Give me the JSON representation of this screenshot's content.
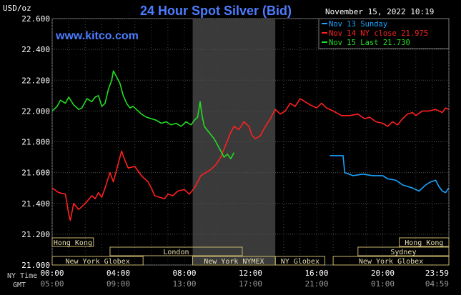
{
  "header": {
    "unit": "USD/oz",
    "title": "24 Hour Spot Silver (Bid)",
    "timestamp": "November 15, 2022 10:19",
    "watermark": "www.kitco.com"
  },
  "legend": [
    {
      "label": "Nov 13 Sunday",
      "color": "#1aa3ff"
    },
    {
      "label": "Nov 14 NY close 21.975",
      "color": "#ff2020"
    },
    {
      "label": "Nov 15 Last 21.730",
      "color": "#22dd22"
    }
  ],
  "sessions": {
    "row1": [
      {
        "label": "Hong Kong",
        "from": 0,
        "to": 2.5
      },
      {
        "label": "Hong Kong",
        "from": 21,
        "to": 24
      }
    ],
    "row2": [
      {
        "label": "London",
        "from": 3.5,
        "to": 11.5
      },
      {
        "label": "Sydney",
        "from": 18.5,
        "to": 24
      }
    ],
    "row3": [
      {
        "label": "New York Globex",
        "from": 0,
        "to": 5.5
      },
      {
        "label": "New York NYMEX",
        "from": 8.5,
        "to": 13.5
      },
      {
        "label": "NY Globex",
        "from": 13.5,
        "to": 16.5
      },
      {
        "label": "New York Globex",
        "from": 17,
        "to": 24
      }
    ]
  },
  "axis_labels": {
    "ny": "NY Time",
    "gmt": "GMT"
  },
  "chart_data": {
    "type": "line",
    "ylabel": "USD/oz",
    "ylim": [
      21.0,
      22.6
    ],
    "xlim": [
      0,
      24
    ],
    "yticks": [
      "21.000",
      "21.200",
      "21.400",
      "21.600",
      "21.800",
      "22.000",
      "22.200",
      "22.400",
      "22.600"
    ],
    "xticks_ny": [
      "00:00",
      "04:00",
      "08:00",
      "12:00",
      "16:00",
      "20:00",
      "23:59"
    ],
    "xticks_gmt": [
      "05:00",
      "09:00",
      "13:00",
      "17:00",
      "21:00",
      "01:00",
      "04:59"
    ],
    "grid": true,
    "shaded_range": [
      8.5,
      13.5
    ],
    "series": [
      {
        "name": "Nov 13 Sunday",
        "color": "#1aa3ff",
        "points": [
          [
            16.8,
            21.71
          ],
          [
            17.6,
            21.71
          ],
          [
            17.7,
            21.6
          ],
          [
            18.2,
            21.58
          ],
          [
            18.8,
            21.59
          ],
          [
            19.4,
            21.58
          ],
          [
            20.0,
            21.58
          ],
          [
            20.3,
            21.56
          ],
          [
            20.8,
            21.55
          ],
          [
            21.2,
            21.52
          ],
          [
            21.8,
            21.5
          ],
          [
            22.2,
            21.48
          ],
          [
            22.6,
            21.52
          ],
          [
            22.9,
            21.54
          ],
          [
            23.2,
            21.55
          ],
          [
            23.4,
            21.51
          ],
          [
            23.6,
            21.48
          ],
          [
            23.8,
            21.47
          ],
          [
            23.99,
            21.5
          ]
        ]
      },
      {
        "name": "Nov 14 NY close 21.975",
        "color": "#ff2020",
        "points": [
          [
            0,
            21.5
          ],
          [
            0.4,
            21.47
          ],
          [
            0.8,
            21.46
          ],
          [
            1.0,
            21.33
          ],
          [
            1.1,
            21.29
          ],
          [
            1.3,
            21.4
          ],
          [
            1.6,
            21.36
          ],
          [
            2.0,
            21.4
          ],
          [
            2.4,
            21.45
          ],
          [
            2.6,
            21.43
          ],
          [
            2.8,
            21.47
          ],
          [
            3.0,
            21.44
          ],
          [
            3.2,
            21.5
          ],
          [
            3.5,
            21.6
          ],
          [
            3.7,
            21.54
          ],
          [
            4.0,
            21.66
          ],
          [
            4.2,
            21.74
          ],
          [
            4.4,
            21.68
          ],
          [
            4.6,
            21.63
          ],
          [
            5.0,
            21.64
          ],
          [
            5.4,
            21.58
          ],
          [
            5.8,
            21.54
          ],
          [
            6.0,
            21.5
          ],
          [
            6.2,
            21.45
          ],
          [
            6.5,
            21.44
          ],
          [
            6.8,
            21.43
          ],
          [
            7.0,
            21.46
          ],
          [
            7.3,
            21.45
          ],
          [
            7.6,
            21.48
          ],
          [
            8.0,
            21.49
          ],
          [
            8.3,
            21.46
          ],
          [
            8.6,
            21.5
          ],
          [
            8.8,
            21.54
          ],
          [
            9.0,
            21.58
          ],
          [
            9.3,
            21.6
          ],
          [
            9.6,
            21.62
          ],
          [
            9.9,
            21.65
          ],
          [
            10.2,
            21.7
          ],
          [
            10.5,
            21.78
          ],
          [
            10.8,
            21.86
          ],
          [
            11.0,
            21.9
          ],
          [
            11.3,
            21.88
          ],
          [
            11.6,
            21.93
          ],
          [
            11.9,
            21.9
          ],
          [
            12.1,
            21.84
          ],
          [
            12.3,
            21.82
          ],
          [
            12.6,
            21.84
          ],
          [
            12.9,
            21.9
          ],
          [
            13.2,
            21.95
          ],
          [
            13.5,
            22.01
          ],
          [
            13.8,
            21.98
          ],
          [
            14.1,
            22.0
          ],
          [
            14.4,
            22.05
          ],
          [
            14.7,
            22.03
          ],
          [
            15.0,
            22.08
          ],
          [
            15.3,
            22.06
          ],
          [
            15.6,
            22.04
          ],
          [
            16.0,
            22.02
          ],
          [
            16.3,
            22.05
          ],
          [
            16.6,
            22.02
          ],
          [
            17.0,
            22.0
          ],
          [
            17.5,
            21.97
          ],
          [
            18.0,
            21.97
          ],
          [
            18.5,
            21.98
          ],
          [
            18.9,
            21.95
          ],
          [
            19.2,
            21.96
          ],
          [
            19.6,
            21.93
          ],
          [
            20.0,
            21.92
          ],
          [
            20.3,
            21.9
          ],
          [
            20.6,
            21.93
          ],
          [
            20.9,
            21.91
          ],
          [
            21.2,
            21.95
          ],
          [
            21.5,
            21.98
          ],
          [
            21.8,
            21.99
          ],
          [
            22.0,
            21.97
          ],
          [
            22.4,
            22.0
          ],
          [
            22.8,
            22.0
          ],
          [
            23.2,
            22.01
          ],
          [
            23.6,
            21.99
          ],
          [
            23.8,
            22.02
          ],
          [
            23.99,
            22.01
          ]
        ]
      },
      {
        "name": "Nov 15 Last 21.730",
        "color": "#22dd22",
        "points": [
          [
            0,
            22.0
          ],
          [
            0.3,
            22.03
          ],
          [
            0.5,
            22.07
          ],
          [
            0.8,
            22.05
          ],
          [
            1.0,
            22.09
          ],
          [
            1.3,
            22.04
          ],
          [
            1.6,
            22.01
          ],
          [
            1.8,
            22.02
          ],
          [
            2.1,
            22.08
          ],
          [
            2.4,
            22.06
          ],
          [
            2.6,
            22.09
          ],
          [
            2.8,
            22.1
          ],
          [
            3.0,
            22.03
          ],
          [
            3.2,
            22.05
          ],
          [
            3.4,
            22.14
          ],
          [
            3.6,
            22.2
          ],
          [
            3.7,
            22.26
          ],
          [
            3.9,
            22.22
          ],
          [
            4.1,
            22.18
          ],
          [
            4.3,
            22.1
          ],
          [
            4.5,
            22.05
          ],
          [
            4.7,
            22.02
          ],
          [
            4.9,
            22.03
          ],
          [
            5.1,
            22.01
          ],
          [
            5.4,
            21.98
          ],
          [
            5.7,
            21.96
          ],
          [
            6.0,
            21.95
          ],
          [
            6.3,
            21.94
          ],
          [
            6.6,
            21.92
          ],
          [
            6.9,
            21.93
          ],
          [
            7.2,
            21.91
          ],
          [
            7.5,
            21.92
          ],
          [
            7.8,
            21.9
          ],
          [
            8.1,
            21.93
          ],
          [
            8.4,
            21.91
          ],
          [
            8.6,
            21.94
          ],
          [
            8.8,
            21.96
          ],
          [
            8.95,
            22.06
          ],
          [
            9.05,
            21.98
          ],
          [
            9.2,
            21.9
          ],
          [
            9.5,
            21.86
          ],
          [
            9.8,
            21.82
          ],
          [
            10.0,
            21.78
          ],
          [
            10.2,
            21.74
          ],
          [
            10.4,
            21.7
          ],
          [
            10.6,
            21.72
          ],
          [
            10.8,
            21.69
          ],
          [
            11.0,
            21.73
          ]
        ]
      }
    ]
  }
}
